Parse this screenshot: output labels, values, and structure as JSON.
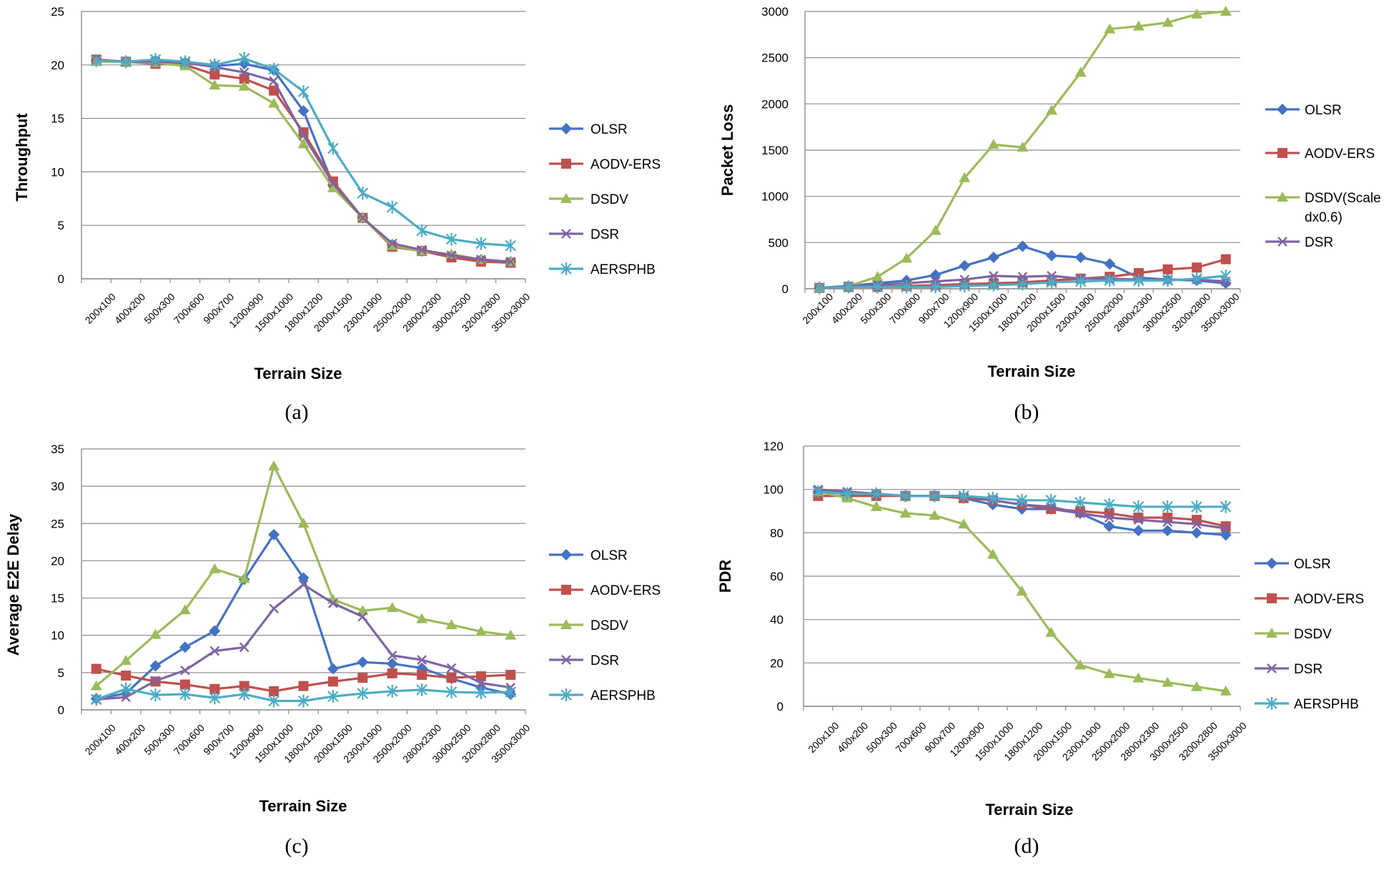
{
  "figure": {
    "x_tick_labels": [
      "200x100",
      "400x200",
      "500x300",
      "700x600",
      "900x700",
      "1200x900",
      "1500x1000",
      "1800x1200",
      "2000x1500",
      "2300x1900",
      "2500x2000",
      "2800x2300",
      "3000x2500",
      "3200x2800",
      "3500x3000"
    ],
    "series_colors": {
      "OLSR": "#4472c4",
      "AODV-ERS": "#c0504d",
      "DSDV": "#9bbb59",
      "DSR": "#8064a2",
      "AERSPHB": "#4bacc6"
    },
    "series_markers": {
      "OLSR": "diamond",
      "AODV-ERS": "square",
      "DSDV": "triangle",
      "DSR": "x",
      "AERSPHB": "star"
    }
  },
  "chart_data": [
    {
      "id": "a",
      "type": "line",
      "caption": "(a)",
      "title": "",
      "xlabel": "Terrain Size",
      "ylabel": "Throughput",
      "ylim": [
        0,
        25
      ],
      "yticks": [
        0,
        5,
        10,
        15,
        20,
        25
      ],
      "grid": true,
      "legend": "right",
      "categories": [
        "200x100",
        "400x200",
        "500x300",
        "700x600",
        "900x700",
        "1200x900",
        "1500x1000",
        "1800x1200",
        "2000x1500",
        "2300x1900",
        "2500x2000",
        "2800x2300",
        "3000x2500",
        "3200x2800",
        "3500x3000"
      ],
      "series": [
        {
          "name": "OLSR",
          "legend_label": "OLSR",
          "values": [
            20.4,
            20.3,
            20.4,
            20.2,
            19.9,
            20.1,
            19.5,
            15.7,
            8.8,
            5.7,
            3.2,
            2.6,
            2.2,
            1.8,
            1.6
          ]
        },
        {
          "name": "AODV-ERS",
          "legend_label": "AODV-ERS",
          "values": [
            20.5,
            20.3,
            20.1,
            20.0,
            19.1,
            18.7,
            17.6,
            13.7,
            9.1,
            5.7,
            3.0,
            2.6,
            2.0,
            1.6,
            1.5
          ]
        },
        {
          "name": "DSDV",
          "legend_label": "DSDV",
          "values": [
            20.3,
            20.3,
            20.2,
            19.9,
            18.1,
            18.0,
            16.4,
            12.6,
            8.5,
            5.7,
            3.1,
            2.6,
            2.3,
            1.8,
            1.6
          ]
        },
        {
          "name": "DSR",
          "legend_label": "DSR",
          "values": [
            20.4,
            20.3,
            20.3,
            20.2,
            19.8,
            19.3,
            18.5,
            13.4,
            8.9,
            5.7,
            3.3,
            2.7,
            2.2,
            1.8,
            1.6
          ]
        },
        {
          "name": "AERSPHB",
          "legend_label": "AERSPHB",
          "values": [
            20.4,
            20.3,
            20.5,
            20.3,
            20.0,
            20.6,
            19.6,
            17.5,
            12.2,
            8.0,
            6.7,
            4.5,
            3.7,
            3.3,
            3.1
          ]
        }
      ]
    },
    {
      "id": "b",
      "type": "line",
      "caption": "(b)",
      "title": "",
      "xlabel": "Terrain Size",
      "ylabel": "Packet Loss",
      "ylim": [
        0,
        3000
      ],
      "yticks": [
        0,
        500,
        1000,
        1500,
        2000,
        2500,
        3000
      ],
      "grid": true,
      "legend": "right",
      "categories": [
        "200x100",
        "400x200",
        "500x300",
        "700x600",
        "900x700",
        "1200x900",
        "1500x1000",
        "1800x1200",
        "2000x1500",
        "2300x1900",
        "2500x2000",
        "2800x2300",
        "3000x2500",
        "3200x2800",
        "3500x3000"
      ],
      "series": [
        {
          "name": "OLSR",
          "legend_label": "OLSR",
          "values": [
            10,
            30,
            60,
            90,
            150,
            250,
            340,
            460,
            360,
            340,
            270,
            120,
            100,
            90,
            60
          ]
        },
        {
          "name": "AODV-ERS",
          "legend_label": "AODV-ERS",
          "values": [
            10,
            20,
            20,
            30,
            40,
            50,
            60,
            70,
            90,
            110,
            130,
            170,
            210,
            230,
            320
          ]
        },
        {
          "name": "DSDV",
          "legend_label": "DSDV(Scale dx0.6)",
          "legend_lines": [
            "DSDV(Scale",
            "dx0.6)"
          ],
          "values": [
            10,
            30,
            130,
            330,
            630,
            1200,
            1560,
            1530,
            1930,
            2340,
            2810,
            2840,
            2880,
            2970,
            3040
          ]
        },
        {
          "name": "DSR",
          "legend_label": "DSR",
          "values": [
            10,
            30,
            40,
            60,
            80,
            100,
            140,
            130,
            140,
            110,
            110,
            100,
            100,
            100,
            80
          ]
        },
        {
          "name": "AERSPHB",
          "legend_label": "",
          "values": [
            10,
            20,
            20,
            20,
            20,
            30,
            40,
            50,
            70,
            80,
            90,
            90,
            90,
            110,
            140
          ]
        }
      ]
    },
    {
      "id": "c",
      "type": "line",
      "caption": "(c)",
      "title": "",
      "xlabel": "Terrain Size",
      "ylabel": "Average E2E Delay",
      "ylim": [
        0,
        35
      ],
      "yticks": [
        0,
        5,
        10,
        15,
        20,
        25,
        30,
        35
      ],
      "grid": true,
      "legend": "right",
      "categories": [
        "200x100",
        "400x200",
        "500x300",
        "700x600",
        "900x700",
        "1200x900",
        "1500x1000",
        "1800x1200",
        "2000x1500",
        "2300x1900",
        "2500x2000",
        "2800x2300",
        "3000x2500",
        "3200x2800",
        "3500x3000"
      ],
      "series": [
        {
          "name": "OLSR",
          "legend_label": "OLSR",
          "values": [
            1.5,
            2.2,
            5.9,
            8.4,
            10.6,
            17.5,
            23.5,
            17.7,
            5.5,
            6.4,
            6.2,
            5.6,
            4.2,
            3.0,
            2.1
          ]
        },
        {
          "name": "AODV-ERS",
          "legend_label": "AODV-ERS",
          "values": [
            5.5,
            4.6,
            3.8,
            3.4,
            2.8,
            3.2,
            2.5,
            3.2,
            3.8,
            4.3,
            4.9,
            4.7,
            4.3,
            4.5,
            4.7
          ]
        },
        {
          "name": "DSDV",
          "legend_label": "DSDV",
          "values": [
            3.2,
            6.6,
            10.1,
            13.4,
            18.9,
            17.6,
            32.7,
            25.0,
            14.8,
            13.3,
            13.7,
            12.2,
            11.4,
            10.5,
            10.0
          ]
        },
        {
          "name": "DSR",
          "legend_label": "DSR",
          "values": [
            1.4,
            1.7,
            3.9,
            5.3,
            7.9,
            8.4,
            13.6,
            16.8,
            14.3,
            12.5,
            7.3,
            6.7,
            5.6,
            3.6,
            3.0
          ]
        },
        {
          "name": "AERSPHB",
          "legend_label": "AERSPHB",
          "values": [
            1.4,
            2.8,
            2.0,
            2.1,
            1.6,
            2.1,
            1.2,
            1.2,
            1.8,
            2.2,
            2.5,
            2.7,
            2.4,
            2.3,
            2.4
          ]
        }
      ]
    },
    {
      "id": "d",
      "type": "line",
      "caption": "(d)",
      "title": "",
      "xlabel": "Terrain Size",
      "ylabel": "PDR",
      "ylim": [
        0,
        120
      ],
      "yticks": [
        0,
        20,
        40,
        60,
        80,
        100,
        120
      ],
      "grid": true,
      "legend": "right",
      "categories": [
        "200x100",
        "400x200",
        "500x300",
        "700x600",
        "900x700",
        "1200x900",
        "1500x1000",
        "1800x1200",
        "2000x1500",
        "2300x1900",
        "2500x2000",
        "2800x2300",
        "3000x2500",
        "3200x2800",
        "3500x3000"
      ],
      "series": [
        {
          "name": "OLSR",
          "legend_label": "OLSR",
          "values": [
            99,
            98,
            98,
            97,
            97,
            96,
            93,
            91,
            91,
            89,
            83,
            81,
            81,
            80,
            79
          ]
        },
        {
          "name": "AODV-ERS",
          "legend_label": "AODV-ERS",
          "values": [
            97,
            97,
            97,
            97,
            97,
            96,
            95,
            93,
            91,
            90,
            89,
            87,
            87,
            86,
            83
          ]
        },
        {
          "name": "DSDV",
          "legend_label": "DSDV",
          "values": [
            99,
            96,
            92,
            89,
            88,
            84,
            70,
            53,
            34,
            19,
            15,
            13,
            11,
            9,
            7
          ]
        },
        {
          "name": "DSR",
          "legend_label": "DSR",
          "values": [
            100,
            99,
            98,
            97,
            97,
            97,
            95,
            93,
            92,
            89,
            87,
            86,
            85,
            84,
            82
          ]
        },
        {
          "name": "AERSPHB",
          "legend_label": "AERSPHB",
          "values": [
            99,
            98,
            98,
            97,
            97,
            97,
            96,
            95,
            95,
            94,
            93,
            92,
            92,
            92,
            92
          ]
        }
      ]
    }
  ]
}
